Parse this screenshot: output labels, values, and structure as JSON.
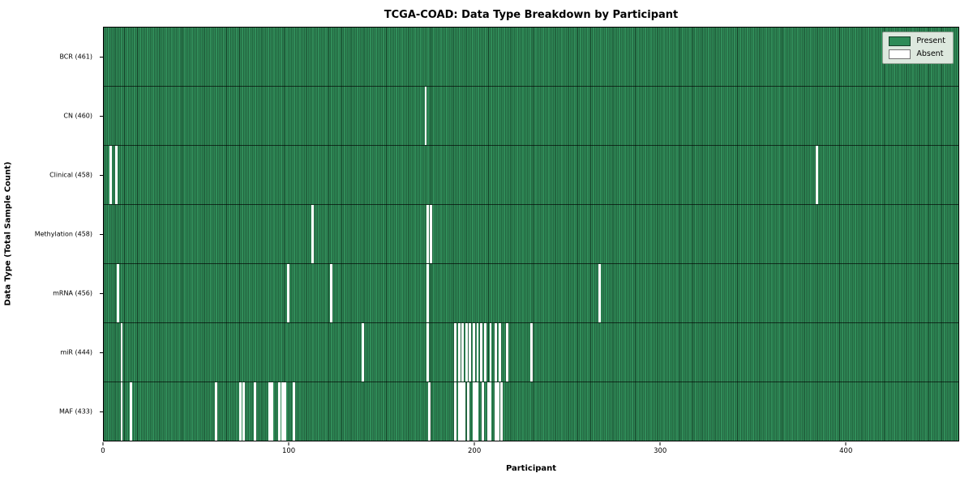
{
  "title": "TCGA-COAD: Data Type Breakdown by Participant",
  "xlabel": "Participant",
  "ylabel": "Data Type (Total Sample Count)",
  "legend": {
    "present_label": "Present",
    "absent_label": "Absent",
    "position": "upper right"
  },
  "colors": {
    "present": "#2e8b57",
    "absent": "#ffffff",
    "bar_edge": "#1b4d33",
    "legend_bg": "#dde8de"
  },
  "chart_data": {
    "type": "heatmap",
    "title": "TCGA-COAD: Data Type Breakdown by Participant",
    "xlabel": "Participant",
    "ylabel": "Data Type (Total Sample Count)",
    "xlim": [
      0,
      461
    ],
    "x_ticks": [
      0,
      100,
      200,
      300,
      400
    ],
    "n_participants": 461,
    "grid": false,
    "legend_entries": [
      "Present",
      "Absent"
    ],
    "legend_position": "upper right",
    "rows": [
      {
        "data_type": "BCR",
        "label": "BCR (461)",
        "present_count": 461,
        "absent_count": 0,
        "absent_participants": []
      },
      {
        "data_type": "CN",
        "label": "CN (460)",
        "present_count": 460,
        "absent_count": 1,
        "absent_participants": [
          173
        ]
      },
      {
        "data_type": "Clinical",
        "label": "Clinical (458)",
        "present_count": 458,
        "absent_count": 3,
        "absent_participants": [
          3,
          6,
          384
        ]
      },
      {
        "data_type": "Methylation",
        "label": "Methylation (458)",
        "present_count": 458,
        "absent_count": 3,
        "absent_participants": [
          112,
          174,
          176
        ]
      },
      {
        "data_type": "mRNA",
        "label": "mRNA (456)",
        "present_count": 456,
        "absent_count": 5,
        "absent_participants": [
          7,
          99,
          122,
          174,
          267
        ]
      },
      {
        "data_type": "miR",
        "label": "miR (444)",
        "present_count": 444,
        "absent_count": 17,
        "absent_participants": [
          9,
          139,
          174,
          189,
          191,
          193,
          195,
          197,
          199,
          201,
          203,
          205,
          208,
          211,
          213,
          217,
          230
        ]
      },
      {
        "data_type": "MAF",
        "label": "MAF (433)",
        "present_count": 433,
        "absent_count": 28,
        "absent_participants": [
          9,
          14,
          60,
          73,
          75,
          81,
          89,
          90,
          94,
          96,
          97,
          102,
          175,
          189,
          191,
          192,
          193,
          194,
          196,
          199,
          200,
          201,
          204,
          207,
          208,
          211,
          212,
          214
        ]
      }
    ]
  }
}
